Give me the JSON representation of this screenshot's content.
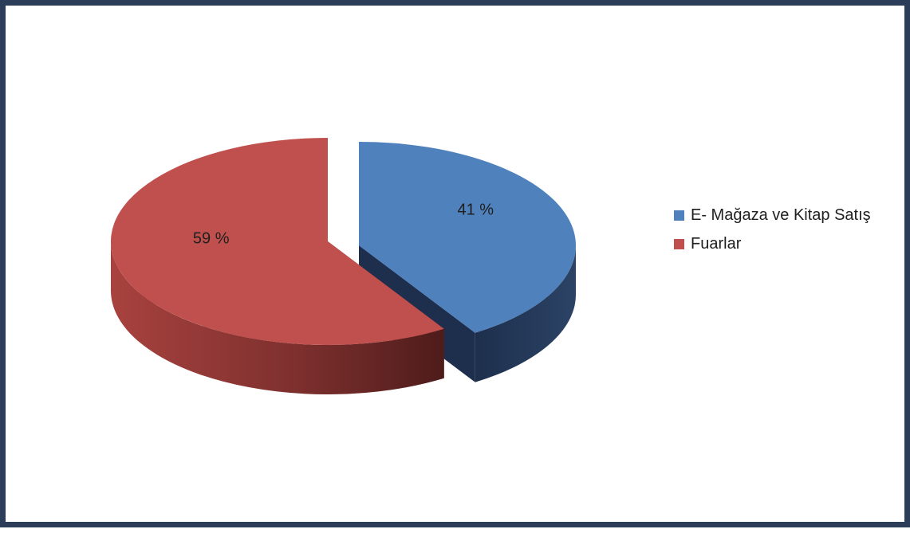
{
  "chart_data": {
    "type": "pie",
    "title": "",
    "categories": [
      "E- Mağaza ve Kitap Satış",
      "Fuarlar"
    ],
    "values": [
      41,
      59
    ],
    "data_labels": [
      "41 %",
      "59 %"
    ],
    "legend_position": "right",
    "exploded": true,
    "three_d": true,
    "colors": [
      "#4f81bd",
      "#c0504d"
    ]
  }
}
